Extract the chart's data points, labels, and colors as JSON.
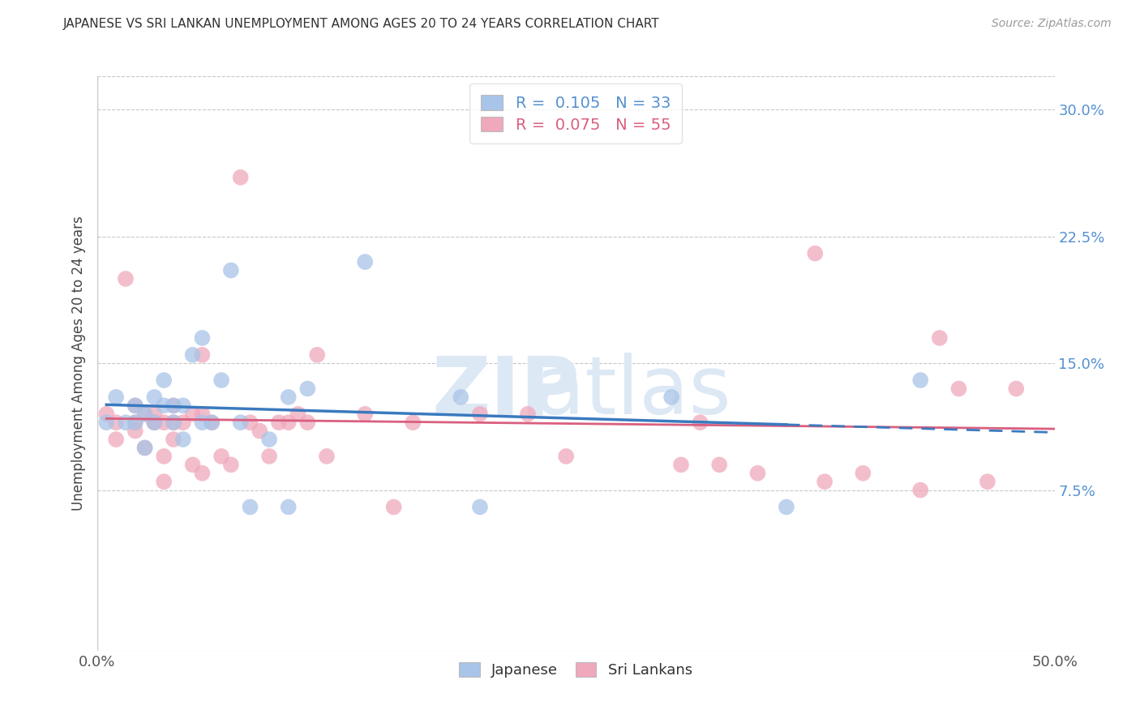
{
  "title": "JAPANESE VS SRI LANKAN UNEMPLOYMENT AMONG AGES 20 TO 24 YEARS CORRELATION CHART",
  "source": "Source: ZipAtlas.com",
  "ylabel": "Unemployment Among Ages 20 to 24 years",
  "xlim": [
    0,
    0.5
  ],
  "ylim": [
    -0.02,
    0.32
  ],
  "xtick_positions": [
    0.0,
    0.1,
    0.2,
    0.3,
    0.4,
    0.5
  ],
  "xtick_labels": [
    "0.0%",
    "",
    "",
    "",
    "",
    "50.0%"
  ],
  "ytick_vals_right": [
    0.075,
    0.15,
    0.225,
    0.3
  ],
  "ytick_labels_right": [
    "7.5%",
    "15.0%",
    "22.5%",
    "30.0%"
  ],
  "japanese_R": 0.105,
  "japanese_N": 33,
  "srilankan_R": 0.075,
  "srilankan_N": 55,
  "japanese_color": "#a8c4e8",
  "srilankan_color": "#f0a8bc",
  "japanese_line_color": "#3a7abf",
  "srilankan_line_color": "#d95f7f",
  "background_color": "#ffffff",
  "grid_color": "#c8c8c8",
  "japanese_x": [
    0.005,
    0.01,
    0.015,
    0.02,
    0.02,
    0.025,
    0.025,
    0.03,
    0.03,
    0.035,
    0.035,
    0.04,
    0.04,
    0.045,
    0.045,
    0.05,
    0.055,
    0.055,
    0.06,
    0.065,
    0.07,
    0.075,
    0.08,
    0.09,
    0.1,
    0.1,
    0.11,
    0.14,
    0.19,
    0.2,
    0.3,
    0.36,
    0.43
  ],
  "japanese_y": [
    0.115,
    0.13,
    0.115,
    0.115,
    0.125,
    0.1,
    0.12,
    0.115,
    0.13,
    0.125,
    0.14,
    0.115,
    0.125,
    0.105,
    0.125,
    0.155,
    0.115,
    0.165,
    0.115,
    0.14,
    0.205,
    0.115,
    0.065,
    0.105,
    0.13,
    0.065,
    0.135,
    0.21,
    0.13,
    0.065,
    0.13,
    0.065,
    0.14
  ],
  "srilankan_x": [
    0.005,
    0.01,
    0.01,
    0.015,
    0.02,
    0.02,
    0.02,
    0.025,
    0.025,
    0.03,
    0.03,
    0.03,
    0.035,
    0.035,
    0.035,
    0.04,
    0.04,
    0.04,
    0.045,
    0.05,
    0.05,
    0.055,
    0.055,
    0.055,
    0.06,
    0.065,
    0.07,
    0.075,
    0.08,
    0.085,
    0.09,
    0.095,
    0.1,
    0.105,
    0.11,
    0.115,
    0.12,
    0.14,
    0.155,
    0.165,
    0.2,
    0.225,
    0.245,
    0.305,
    0.315,
    0.325,
    0.345,
    0.375,
    0.38,
    0.4,
    0.43,
    0.44,
    0.45,
    0.465,
    0.48
  ],
  "srilankan_y": [
    0.12,
    0.115,
    0.105,
    0.2,
    0.115,
    0.125,
    0.11,
    0.1,
    0.12,
    0.115,
    0.12,
    0.115,
    0.095,
    0.115,
    0.08,
    0.115,
    0.105,
    0.125,
    0.115,
    0.12,
    0.09,
    0.12,
    0.155,
    0.085,
    0.115,
    0.095,
    0.09,
    0.26,
    0.115,
    0.11,
    0.095,
    0.115,
    0.115,
    0.12,
    0.115,
    0.155,
    0.095,
    0.12,
    0.065,
    0.115,
    0.12,
    0.12,
    0.095,
    0.09,
    0.115,
    0.09,
    0.085,
    0.215,
    0.08,
    0.085,
    0.075,
    0.165,
    0.135,
    0.08,
    0.135
  ]
}
